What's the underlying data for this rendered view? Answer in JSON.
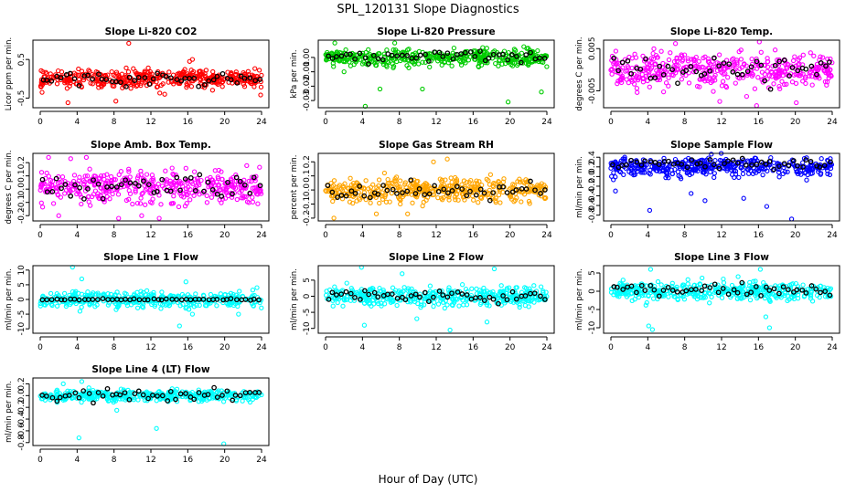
{
  "figure": {
    "title": "SPL_120131  Slope Diagnostics",
    "xlabel": "Hour of Day (UTC)"
  },
  "chart_data": [
    {
      "type": "scatter",
      "title": "Slope Li-820 CO2",
      "ylabel": "Licor ppm per min.",
      "color": "#ff0000",
      "xlim": [
        0,
        24
      ],
      "ylim": [
        -0.75,
        1.0
      ],
      "xticks": [
        "0",
        "4",
        "8",
        "12",
        "16",
        "20",
        "24"
      ],
      "yticks": [
        {
          "v": -0.5,
          "label": "-0.5"
        },
        {
          "v": 0.5,
          "label": "0.5"
        }
      ],
      "spread": {
        "center": 0.0,
        "sd": 0.17
      },
      "black_spread": {
        "center": 0.0,
        "sd": 0.13
      },
      "outliers": [
        [
          9.6,
          0.92
        ],
        [
          16.5,
          0.5
        ],
        [
          16.2,
          0.45
        ],
        [
          3.0,
          -0.62
        ],
        [
          8.2,
          -0.58
        ],
        [
          23.9,
          -0.42
        ],
        [
          0.2,
          -0.35
        ],
        [
          13.5,
          -0.4
        ]
      ]
    },
    {
      "type": "scatter",
      "title": "Slope Li-820 Pressure",
      "ylabel": "kPa per min.",
      "color": "#00cc00",
      "xlim": [
        0,
        24
      ],
      "ylim": [
        -0.035,
        0.012
      ],
      "xticks": [
        "0",
        "4",
        "8",
        "12",
        "16",
        "20",
        "24"
      ],
      "yticks": [
        {
          "v": 0.0,
          "label": "0.00"
        },
        {
          "v": -0.01,
          "label": "-0.01"
        },
        {
          "v": -0.02,
          "label": "-0.02"
        },
        {
          "v": -0.03,
          "label": "-0.03"
        }
      ],
      "spread": {
        "center": 0.0,
        "sd": 0.004
      },
      "black_spread": {
        "center": 0.001,
        "sd": 0.003
      },
      "outliers": [
        [
          1.0,
          0.01
        ],
        [
          7.5,
          0.01
        ],
        [
          2.0,
          -0.01
        ],
        [
          4.3,
          -0.034
        ],
        [
          5.9,
          -0.022
        ],
        [
          10.5,
          -0.022
        ],
        [
          19.8,
          -0.031
        ],
        [
          23.4,
          -0.024
        ]
      ]
    },
    {
      "type": "scatter",
      "title": "Slope Li-820 Temp.",
      "ylabel": "degrees C per min.",
      "color": "#ff00ff",
      "xlim": [
        0,
        24
      ],
      "ylim": [
        -0.009,
        0.007
      ],
      "xticks": [
        "0",
        "4",
        "8",
        "12",
        "16",
        "20",
        "24"
      ],
      "yticks": [
        {
          "v": 0.005,
          "label": "0.005"
        },
        {
          "v": -0.005,
          "label": "-0.005"
        }
      ],
      "spread": {
        "center": 0.0,
        "sd": 0.0028
      },
      "black_spread": {
        "center": 0.0,
        "sd": 0.0025
      },
      "outliers": [
        [
          15.8,
          -0.0085
        ],
        [
          16.1,
          0.0066
        ],
        [
          20.1,
          -0.0078
        ],
        [
          11.8,
          -0.0075
        ],
        [
          7.0,
          0.0062
        ]
      ]
    },
    {
      "type": "scatter",
      "title": "Slope Amb. Box Temp.",
      "ylabel": "degrees C per min.",
      "color": "#ff00ff",
      "xlim": [
        0,
        24
      ],
      "ylim": [
        -0.24,
        0.27
      ],
      "xticks": [
        "0",
        "4",
        "8",
        "12",
        "16",
        "20",
        "24"
      ],
      "yticks": [
        {
          "v": -0.2,
          "label": "-0.2"
        },
        {
          "v": -0.1,
          "label": "-0.1"
        },
        {
          "v": 0.0,
          "label": "0.0"
        },
        {
          "v": 0.1,
          "label": "0.1"
        },
        {
          "v": 0.2,
          "label": "0.2"
        }
      ],
      "spread": {
        "center": 0.02,
        "sd": 0.085
      },
      "black_spread": {
        "center": 0.02,
        "sd": 0.06
      },
      "outliers": [
        [
          0.9,
          0.24
        ],
        [
          5.0,
          0.24
        ],
        [
          3.3,
          0.23
        ],
        [
          2.0,
          -0.2
        ],
        [
          11.0,
          -0.2
        ],
        [
          8.5,
          -0.22
        ],
        [
          12.9,
          -0.22
        ]
      ]
    },
    {
      "type": "scatter",
      "title": "Slope Gas Stream RH",
      "ylabel": "percent per min.",
      "color": "#ffa500",
      "xlim": [
        0,
        24
      ],
      "ylim": [
        -0.22,
        0.26
      ],
      "xticks": [
        "0",
        "4",
        "8",
        "12",
        "16",
        "20",
        "24"
      ],
      "yticks": [
        {
          "v": -0.2,
          "label": "-0.2"
        },
        {
          "v": -0.1,
          "label": "-0.1"
        },
        {
          "v": 0.0,
          "label": "0.0"
        },
        {
          "v": 0.1,
          "label": "0.1"
        },
        {
          "v": 0.2,
          "label": "0.2"
        }
      ],
      "spread": {
        "center": 0.0,
        "sd": 0.06
      },
      "black_spread": {
        "center": 0.0,
        "sd": 0.05
      },
      "outliers": [
        [
          13.2,
          0.22
        ],
        [
          11.7,
          0.2
        ],
        [
          0.9,
          -0.2
        ],
        [
          5.5,
          -0.17
        ],
        [
          8.9,
          -0.17
        ]
      ]
    },
    {
      "type": "scatter",
      "title": "Slope Sample Flow",
      "ylabel": "ml/min per min.",
      "color": "#0000ff",
      "xlim": [
        0,
        24
      ],
      "ylim": [
        -0.92,
        0.48
      ],
      "xticks": [
        "0",
        "4",
        "8",
        "12",
        "16",
        "20",
        "24"
      ],
      "yticks": [
        {
          "v": 0.4,
          "label": "0.4"
        },
        {
          "v": 0.2,
          "label": "0.2"
        },
        {
          "v": 0.0,
          "label": "0.0"
        },
        {
          "v": -0.2,
          "label": "-0.2"
        },
        {
          "v": -0.4,
          "label": "-0.4"
        },
        {
          "v": -0.6,
          "label": "-0.6"
        },
        {
          "v": -0.8,
          "label": "-0.8"
        }
      ],
      "spread": {
        "center": 0.2,
        "sd": 0.13
      },
      "black_spread": {
        "center": 0.27,
        "sd": 0.08
      },
      "outliers": [
        [
          19.6,
          -0.88
        ],
        [
          4.2,
          -0.7
        ],
        [
          16.9,
          -0.62
        ],
        [
          10.2,
          -0.5
        ],
        [
          14.4,
          -0.45
        ],
        [
          0.5,
          -0.3
        ],
        [
          8.7,
          -0.35
        ]
      ]
    },
    {
      "type": "scatter",
      "title": "Slope Line 1 Flow",
      "ylabel": "ml/min per min.",
      "color": "#00ffff",
      "xlim": [
        0,
        24
      ],
      "ylim": [
        -11.5,
        11.5
      ],
      "xticks": [
        "0",
        "4",
        "8",
        "12",
        "16",
        "20",
        "24"
      ],
      "yticks": [
        {
          "v": -10,
          "label": "-10"
        },
        {
          "v": -5,
          "label": "-5"
        },
        {
          "v": 0,
          "label": "0"
        },
        {
          "v": 5,
          "label": "5"
        },
        {
          "v": 10,
          "label": "10"
        }
      ],
      "spread": {
        "center": 0.0,
        "sd": 1.8
      },
      "black_spread": {
        "center": 0.0,
        "sd": 0.15
      },
      "outliers": [
        [
          3.5,
          11
        ],
        [
          4.5,
          7
        ],
        [
          15.1,
          -9
        ],
        [
          16.5,
          -5
        ],
        [
          15.8,
          6
        ],
        [
          23.5,
          4
        ],
        [
          4.3,
          -4
        ],
        [
          21.5,
          -5
        ]
      ]
    },
    {
      "type": "scatter",
      "title": "Slope Line 2 Flow",
      "ylabel": "ml/min per min.",
      "color": "#00ffff",
      "xlim": [
        0,
        24
      ],
      "ylim": [
        -11.5,
        9.5
      ],
      "xticks": [
        "0",
        "4",
        "8",
        "12",
        "16",
        "20",
        "24"
      ],
      "yticks": [
        {
          "v": -10,
          "label": "-10"
        },
        {
          "v": -5,
          "label": "-5"
        },
        {
          "v": 0,
          "label": "0"
        },
        {
          "v": 5,
          "label": "5"
        }
      ],
      "spread": {
        "center": 0.0,
        "sd": 2.0
      },
      "black_spread": {
        "center": 0.0,
        "sd": 1.2
      },
      "outliers": [
        [
          3.9,
          9
        ],
        [
          4.2,
          -9
        ],
        [
          13.5,
          -10.5
        ],
        [
          18.3,
          8.5
        ],
        [
          8.3,
          7
        ],
        [
          17.5,
          -8
        ],
        [
          9.9,
          -7
        ]
      ]
    },
    {
      "type": "scatter",
      "title": "Slope Line 3 Flow",
      "ylabel": "ml/min per min.",
      "color": "#00ffff",
      "xlim": [
        0,
        24
      ],
      "ylim": [
        -11.5,
        7.0
      ],
      "xticks": [
        "0",
        "4",
        "8",
        "12",
        "16",
        "20",
        "24"
      ],
      "yticks": [
        {
          "v": -10,
          "label": "-10"
        },
        {
          "v": -5,
          "label": "-5"
        },
        {
          "v": 0,
          "label": "0"
        },
        {
          "v": 5,
          "label": "5"
        }
      ],
      "spread": {
        "center": 0.0,
        "sd": 1.7
      },
      "black_spread": {
        "center": 0.5,
        "sd": 1.0
      },
      "outliers": [
        [
          4.1,
          -9.5
        ],
        [
          4.5,
          -10.5
        ],
        [
          17.2,
          -10
        ],
        [
          16.2,
          6
        ],
        [
          4.3,
          6
        ],
        [
          16.8,
          -7
        ],
        [
          13.8,
          4
        ]
      ]
    },
    {
      "type": "scatter",
      "title": "Slope Line 4 (LT) Flow",
      "ylabel": "ml/min per min.",
      "color": "#00ffff",
      "xlim": [
        0,
        24
      ],
      "ylim": [
        -0.85,
        0.3
      ],
      "xticks": [
        "0",
        "4",
        "8",
        "12",
        "16",
        "20",
        "24"
      ],
      "yticks": [
        {
          "v": -0.8,
          "label": "-0.8"
        },
        {
          "v": -0.6,
          "label": "-0.6"
        },
        {
          "v": -0.4,
          "label": "-0.4"
        },
        {
          "v": -0.2,
          "label": "-0.2"
        },
        {
          "v": 0.0,
          "label": "0.0"
        },
        {
          "v": 0.2,
          "label": "0.2"
        }
      ],
      "spread": {
        "center": 0.0,
        "sd": 0.07
      },
      "black_spread": {
        "center": 0.0,
        "sd": 0.08
      },
      "outliers": [
        [
          4.2,
          -0.72
        ],
        [
          12.6,
          -0.56
        ],
        [
          19.9,
          -0.82
        ],
        [
          2.5,
          0.2
        ],
        [
          4.5,
          0.24
        ],
        [
          8.3,
          -0.25
        ]
      ]
    }
  ]
}
